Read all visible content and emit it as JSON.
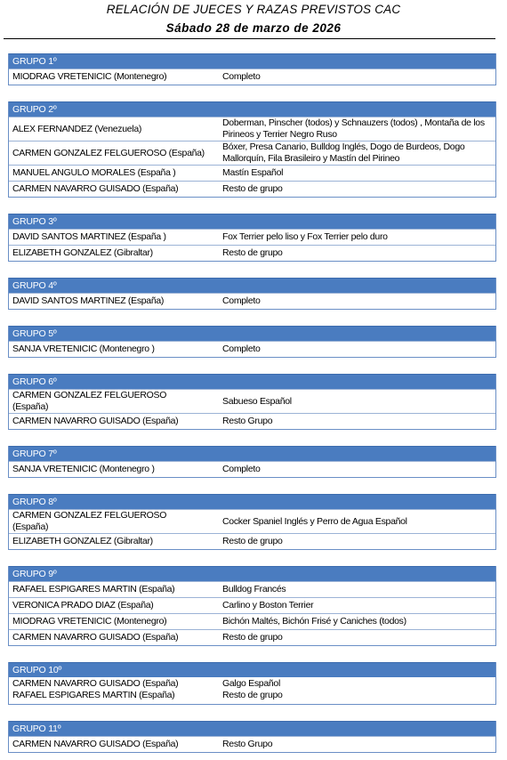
{
  "header": {
    "title": "RELACIÓN DE JUECES Y RAZAS PREVISTOS CAC",
    "subtitle": "Sábado 28 de marzo de 2026"
  },
  "groups": [
    {
      "label": "GRUPO 1º",
      "rows": [
        {
          "judge": "MIODRAG VRETENICIC (Montenegro)",
          "breeds": "Completo"
        }
      ]
    },
    {
      "label": "GRUPO 2º",
      "rows": [
        {
          "judge": "ALEX FERNANDEZ (Venezuela)",
          "breeds": "Doberman, Pinscher (todos) y Schnauzers (todos) , Montaña de los Pirineos y Terrier Negro Ruso"
        },
        {
          "judge": "CARMEN GONZALEZ FELGUEROSO (España)",
          "breeds": "Bóxer, Presa Canario, Bulldog Inglés, Dogo de Burdeos, Dogo Mallorquín, Fila Brasileiro y Mastín del Pirineo"
        },
        {
          "judge": "MANUEL ANGULO MORALES (España )",
          "breeds": "Mastín Español"
        },
        {
          "judge": "CARMEN NAVARRO GUISADO (España)",
          "breeds": "Resto de grupo"
        }
      ]
    },
    {
      "label": "GRUPO 3º",
      "rows": [
        {
          "judge": "DAVID SANTOS MARTINEZ (España )",
          "breeds": "Fox Terrier pelo liso y Fox Terrier pelo duro"
        },
        {
          "judge": "ELIZABETH GONZALEZ (Gibraltar)",
          "breeds": "Resto de grupo"
        }
      ]
    },
    {
      "label": "GRUPO 4º",
      "rows": [
        {
          "judge": "DAVID SANTOS MARTINEZ (España)",
          "breeds": "Completo"
        }
      ]
    },
    {
      "label": "GRUPO 5º",
      "rows": [
        {
          "judge": "SANJA VRETENICIC (Montenegro )",
          "breeds": "Completo"
        }
      ]
    },
    {
      "label": "GRUPO 6º",
      "rows": [
        {
          "judge": "CARMEN GONZALEZ FELGUEROSO (España)",
          "breeds": "Sabueso Español"
        },
        {
          "judge": "CARMEN NAVARRO GUISADO (España)",
          "breeds": "Resto Grupo"
        }
      ]
    },
    {
      "label": "GRUPO 7º",
      "rows": [
        {
          "judge": "SANJA VRETENICIC (Montenegro )",
          "breeds": "Completo"
        }
      ]
    },
    {
      "label": "GRUPO 8º",
      "rows": [
        {
          "judge": "CARMEN GONZALEZ FELGUEROSO (España)",
          "breeds": "Cocker Spaniel Inglés y Perro de Agua Español"
        },
        {
          "judge": "ELIZABETH GONZALEZ (Gibraltar)",
          "breeds": "Resto de grupo"
        }
      ]
    },
    {
      "label": "GRUPO 9º",
      "rows": [
        {
          "judge": "RAFAEL ESPIGARES MARTIN (España)",
          "breeds": "Bulldog Francés"
        },
        {
          "judge": "VERONICA PRADO DIAZ (España)",
          "breeds": "Carlino y Boston Terrier"
        },
        {
          "judge": "MIODRAG VRETENICIC (Montenegro)",
          "breeds": "Bichón Maltés, Bichón Frisé y Caniches (todos)"
        },
        {
          "judge": "CARMEN NAVARRO GUISADO (España)",
          "breeds": "Resto de grupo"
        }
      ]
    },
    {
      "label": "GRUPO 10º",
      "rows": [
        {
          "judge": "CARMEN NAVARRO GUISADO (España)",
          "breeds": "Galgo Español"
        },
        {
          "judge": "RAFAEL ESPIGARES MARTIN (España)",
          "breeds": "Resto de grupo"
        }
      ]
    },
    {
      "label": "GRUPO 11º",
      "rows": [
        {
          "judge": "CARMEN NAVARRO GUISADO (España)",
          "breeds": "Resto Grupo"
        }
      ]
    }
  ]
}
